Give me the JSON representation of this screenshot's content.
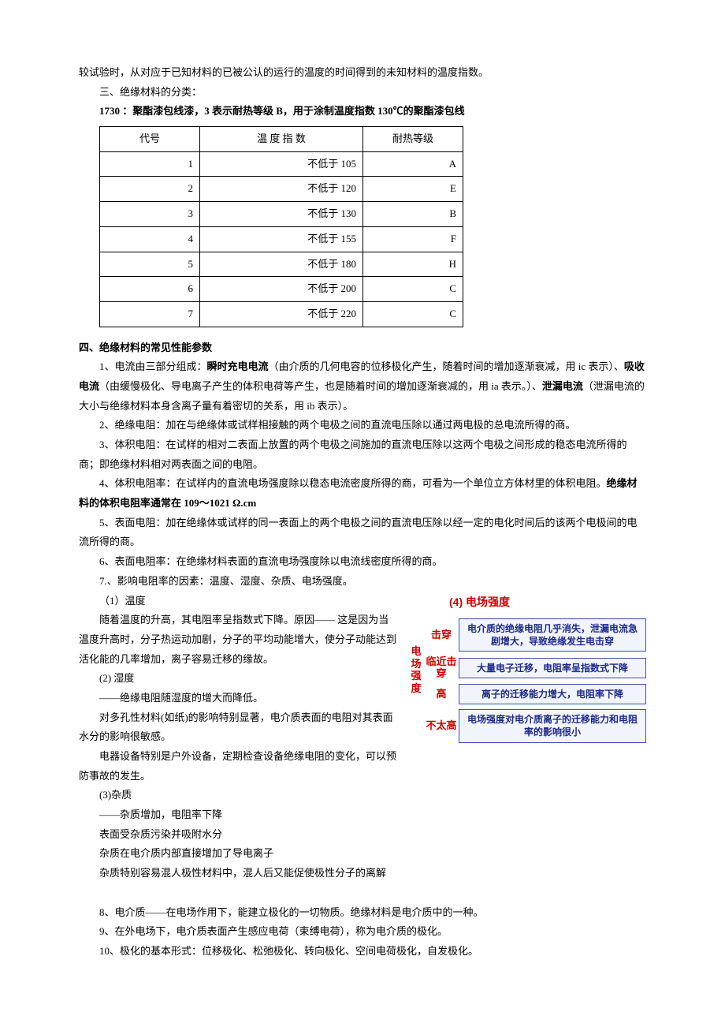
{
  "intro": "较试验时，从对应于已知材料的已被公认的运行的温度的时间得到的未知材料的温度指数。",
  "section3_title": "三、绝缘材料的分类：",
  "example_1730": "1730 ：聚酯漆包线漆，3 表示耐热等级 B，用于涂制温度指数 130℃的聚酯漆包线",
  "table": {
    "header": {
      "code": "代号",
      "temp": "温 度 指 数",
      "grade": "耐热等级"
    },
    "rows": [
      {
        "code": "1",
        "temp": "不低于 105",
        "grade": "A"
      },
      {
        "code": "2",
        "temp": "不低于 120",
        "grade": "E"
      },
      {
        "code": "3",
        "temp": "不低于 130",
        "grade": "B"
      },
      {
        "code": "4",
        "temp": "不低于 155",
        "grade": "F"
      },
      {
        "code": "5",
        "temp": "不低于 180",
        "grade": "H"
      },
      {
        "code": "6",
        "temp": "不低于 200",
        "grade": "C"
      },
      {
        "code": "7",
        "temp": "不低于 220",
        "grade": "C"
      }
    ]
  },
  "section4_title": "四、绝缘材料的常见性能参数",
  "p1_a": "1、电流由三部分组成：",
  "p1_b1": "瞬时充电电流",
  "p1_c": "（由介质的几何电容的位移极化产生，随着时间的增加逐渐衰减，用 ic 表示）、",
  "p1_b2": "吸收电流",
  "p1_d": "（由缓慢极化、导电离子产生的体积电荷等产生，也是随着时间的增加逐渐衰减的，用 ia 表示。）、",
  "p1_b3": "泄漏电流",
  "p1_e": "（泄漏电流的大小与绝缘材料本身含离子量有着密切的关系，用 ib 表示）。",
  "p2": "2、绝缘电阻：加在与绝缘体或试样相接触的两个电极之间的直流电压除以通过两电极的总电流所得的商。",
  "p3": "3、体积电阻：在试样的相对二表面上放置的两个电极之间施加的直流电压除以这两个电极之间形成的稳态电流所得的商；即绝缘材料相对两表面之间的电阻。",
  "p4_a": "4、体积电阻率：在试样内的直流电场强度除以稳态电流密度所得的商，可看为一个单位立方体材里的体积电阻。",
  "p4_b": "绝缘材料的体积电阻率通常在 109～1021 Ω.cm",
  "p5": "5、表面电阻：加在绝缘体或试样的同一表面上的两个电极之间的直流电压除以经一定的电化时间后的该两个电极间的电流所得的商。",
  "p6": "6、表面电阻率：在绝缘材料表面的直流电场强度除以电流线密度所得的商。",
  "p7": "7.、影响电阻率的因素：温度、湿度、杂质、电场强度。",
  "f1_t": "（1）温度",
  "f1_p": "随着温度的升高，其电阻率呈指数式下降。原因—— 这是因为当温度升高时，分子热运动加剧，分子的平均动能增大，使分子动能达到活化能的几率增加，离子容易迁移的缘故。",
  "f2_t": "(2) 湿度",
  "f2_a": "——绝缘电阻随湿度的增大而降低。",
  "f2_b": "对多孔性材料(如纸)的影响特别显著，电介质表面的电阻对其表面水分的影响很敏感。",
  "f2_c": "电器设备特别是户外设备，定期检查设备绝缘电阻的变化，可以预防事故的发生。",
  "f3_t": "(3)杂质",
  "f3_a": "——杂质增加，电阻率下降",
  "f3_b": "表面受杂质污染并吸附水分",
  "f3_c": "杂质在电介质内部直接增加了导电离子",
  "f3_d": "杂质特别容易混人极性材料中，混人后又能促使极性分子的离解",
  "p8": "8、电介质——在电场作用下，能建立极化的一切物质。绝缘材料是电介质中的一种。",
  "p9": "9、在外电场下，电介质表面产生感应电荷（束缚电荷），称为电介质的极化。",
  "p10": "10、极化的基本形式：位移极化、松弛极化、转向极化、空间电荷极化，自发极化。",
  "diagram": {
    "title": "(4) 电场强度",
    "axis": "电场强度",
    "rows": [
      {
        "label": "击穿",
        "text": "电介质的绝缘电阻几乎消失，泄漏电流急剧增大，导致绝缘发生电击穿"
      },
      {
        "label": "临近击穿",
        "text": "大量电子迁移，电阻率呈指数式下降"
      },
      {
        "label": "高",
        "text": "离子的迁移能力增大，电阻率下降"
      },
      {
        "label": "不太高",
        "text": "电场强度对电介质离子的迁移能力和电阻率的影响很小"
      }
    ]
  }
}
